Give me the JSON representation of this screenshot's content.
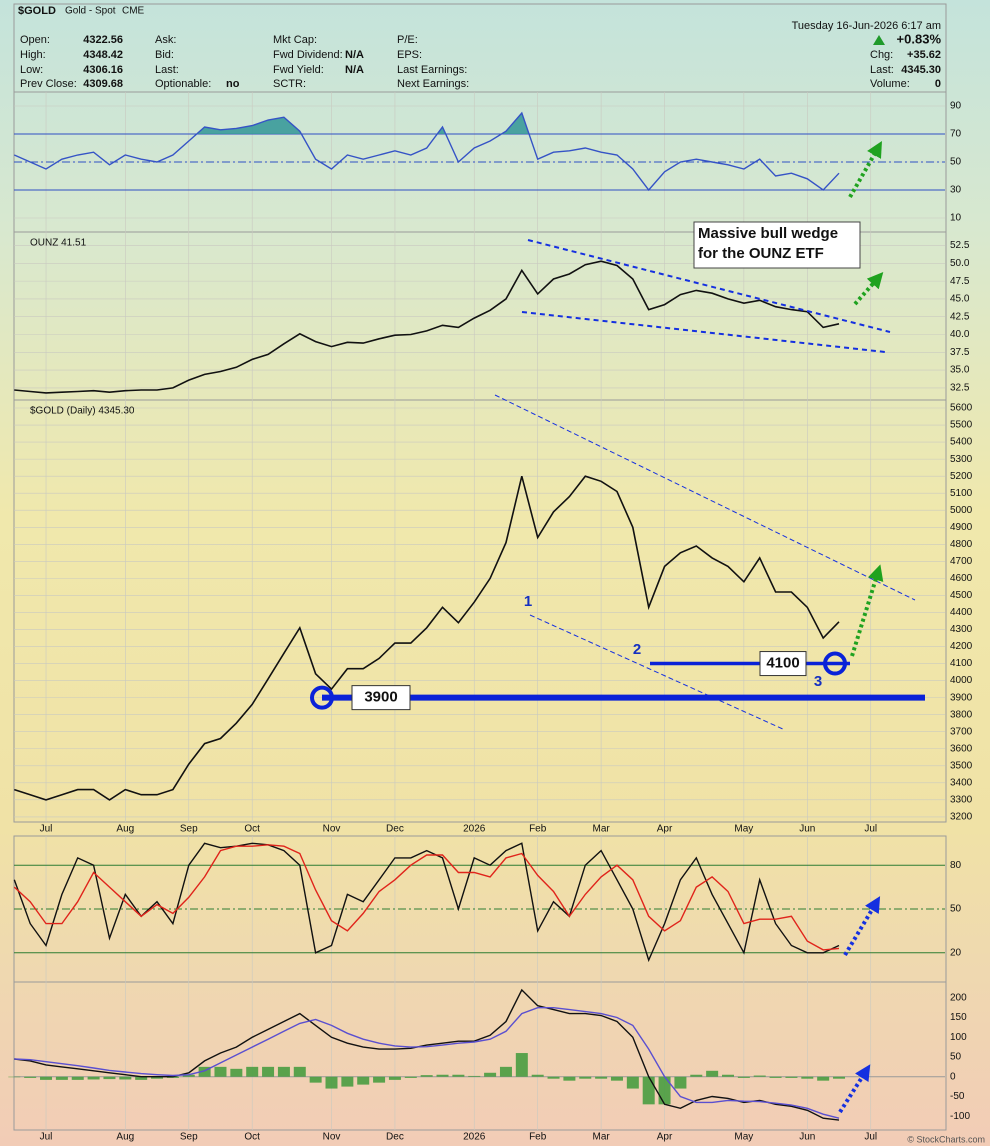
{
  "header": {
    "symbol": "$GOLD",
    "name": "Gold - Spot",
    "exchange": "CME",
    "date": "Tuesday  16-Jun-2026  6:17 am",
    "change_pct": "+0.83%",
    "columns": [
      [
        [
          "Open:",
          "4322.56"
        ],
        [
          "High:",
          "4348.42"
        ],
        [
          "Low:",
          "4306.16"
        ],
        [
          "Prev Close:",
          "4309.68"
        ]
      ],
      [
        [
          "Ask:"
        ],
        [
          "Bid:"
        ],
        [
          "Last:"
        ],
        [
          "Optionable:",
          "no"
        ]
      ],
      [
        [
          "Mkt Cap:"
        ],
        [
          "Fwd Dividend:",
          "N/A"
        ],
        [
          "Fwd Yield:",
          "N/A"
        ],
        [
          "SCTR:"
        ]
      ],
      [
        [
          "P/E:"
        ],
        [
          "EPS:"
        ],
        [
          "Last Earnings:"
        ],
        [
          "Next Earnings:"
        ]
      ]
    ],
    "right": [
      [
        "Chg:",
        "+35.62"
      ],
      [
        "Last:",
        "4345.30"
      ],
      [
        "Volume:",
        "0"
      ]
    ],
    "credit": "© StockCharts.com"
  },
  "chart_data": [
    {
      "type": "line",
      "ylim": [
        0,
        100
      ],
      "yticks": [
        10,
        30,
        50,
        70,
        90
      ],
      "levels": [
        30,
        50,
        70
      ],
      "level_color": "#2f4fc4",
      "fill_above": 70,
      "fill_color": "#3a9a9a",
      "grid": true,
      "series": [
        {
          "color": "#3553c6",
          "values": [
            55,
            50,
            45,
            52,
            55,
            57,
            48,
            55,
            52,
            50,
            55,
            65,
            75,
            73,
            74,
            76,
            80,
            82,
            72,
            52,
            45,
            55,
            52,
            55,
            58,
            55,
            60,
            75,
            50,
            60,
            65,
            72,
            85,
            52,
            57,
            58,
            60,
            57,
            55,
            45,
            30,
            43,
            50,
            52,
            50,
            48,
            45,
            52,
            40,
            42,
            38,
            30,
            42,
            null,
            null
          ]
        }
      ]
    },
    {
      "type": "line",
      "label": "OUNZ 41.51",
      "note": [
        "Massive bull wedge",
        "for the OUNZ ETF"
      ],
      "ylim": [
        30.8,
        54.4
      ],
      "grid": true,
      "yticks": [
        32.5,
        {
          "value": 35,
          "label": "35.0"
        },
        37.5,
        {
          "value": 40,
          "label": "40.0"
        },
        42.5,
        {
          "value": 45,
          "label": "45.0"
        },
        47.5,
        {
          "value": 50,
          "label": "50.0"
        },
        52.5
      ],
      "series": [
        {
          "color": "#111111",
          "values": [
            32.2,
            32.0,
            31.8,
            31.9,
            32.0,
            32.1,
            31.9,
            32.1,
            32.2,
            32.2,
            32.5,
            33.6,
            34.4,
            34.8,
            35.4,
            36.5,
            37.2,
            38.7,
            40.1,
            39.0,
            38.3,
            38.9,
            38.8,
            39.4,
            39.9,
            40.0,
            40.5,
            41.3,
            41.0,
            42.3,
            43.4,
            45.0,
            49.0,
            45.7,
            47.8,
            48.5,
            49.8,
            50.3,
            49.7,
            47.8,
            43.5,
            44.2,
            45.6,
            46.2,
            45.8,
            45.0,
            44.4,
            44.8,
            43.9,
            43.5,
            43.2,
            41.0,
            41.51,
            null,
            null
          ]
        }
      ]
    },
    {
      "type": "line",
      "label": "$GOLD (Daily) 4345.30",
      "waves": [
        "1",
        "2",
        "3"
      ],
      "levels": [
        4100,
        3900
      ],
      "level_color": "#0a22d8",
      "ylim": [
        3170,
        5647
      ],
      "grid": true,
      "categories": [
        null,
        null,
        "Jul",
        null,
        null,
        null,
        null,
        "Aug",
        null,
        null,
        null,
        "Sep",
        null,
        null,
        null,
        "Oct",
        null,
        null,
        null,
        null,
        "Nov",
        null,
        null,
        null,
        "Dec",
        null,
        null,
        null,
        null,
        "2026",
        null,
        null,
        null,
        "Feb",
        null,
        null,
        null,
        "Mar",
        null,
        null,
        null,
        "Apr",
        null,
        null,
        null,
        null,
        "May",
        null,
        null,
        null,
        "Jun",
        null,
        null,
        null,
        "Jul"
      ],
      "yticks": [
        3200,
        3300,
        3400,
        3500,
        3600,
        3700,
        3800,
        3900,
        4000,
        4100,
        4200,
        4300,
        4400,
        4500,
        4600,
        4700,
        4800,
        4900,
        5000,
        5100,
        5200,
        5300,
        5400,
        5500,
        5600
      ],
      "series": [
        {
          "color": "#111111",
          "values": [
            3360,
            3330,
            3300,
            3330,
            3360,
            3360,
            3300,
            3360,
            3330,
            3330,
            3360,
            3510,
            3630,
            3660,
            3750,
            3860,
            4010,
            4160,
            4310,
            4040,
            3950,
            4070,
            4070,
            4130,
            4220,
            4220,
            4310,
            4430,
            4340,
            4460,
            4600,
            4810,
            5200,
            4840,
            4990,
            5080,
            5200,
            5170,
            5110,
            4900,
            4430,
            4670,
            4750,
            4790,
            4720,
            4670,
            4580,
            4720,
            4520,
            4520,
            4430,
            4250,
            4345.3,
            null,
            null
          ]
        }
      ]
    },
    {
      "type": "line",
      "ylim": [
        0,
        100
      ],
      "yticks": [
        20,
        50,
        80
      ],
      "levels": [
        20,
        50,
        80
      ],
      "level_color": "#2e7d32",
      "grid": false,
      "series": [
        {
          "color": "#111111",
          "values": [
            70,
            40,
            25,
            60,
            85,
            80,
            30,
            60,
            45,
            55,
            40,
            80,
            95,
            92,
            93,
            95,
            94,
            90,
            80,
            20,
            25,
            60,
            55,
            70,
            85,
            85,
            90,
            85,
            50,
            85,
            80,
            90,
            95,
            35,
            55,
            45,
            80,
            90,
            70,
            50,
            15,
            40,
            70,
            85,
            60,
            40,
            20,
            70,
            40,
            25,
            20,
            20,
            25,
            null,
            null
          ]
        },
        {
          "color": "#e0241b",
          "values": [
            65,
            55,
            40,
            40,
            55,
            75,
            65,
            55,
            45,
            53,
            47,
            58,
            72,
            90,
            93,
            93,
            94,
            93,
            88,
            63,
            42,
            35,
            47,
            62,
            70,
            80,
            87,
            87,
            75,
            75,
            72,
            85,
            88,
            73,
            62,
            45,
            60,
            72,
            80,
            70,
            45,
            35,
            42,
            65,
            72,
            62,
            40,
            43,
            43,
            45,
            28,
            22,
            23,
            null,
            null
          ]
        }
      ]
    },
    {
      "type": "line",
      "ylim": [
        -135,
        240
      ],
      "yticks": [
        -100,
        -50,
        0,
        50,
        100,
        150,
        200
      ],
      "levels": [
        0
      ],
      "level_color": "#999999",
      "grid": false,
      "categories": [
        null,
        null,
        "Jul",
        null,
        null,
        null,
        null,
        "Aug",
        null,
        null,
        null,
        "Sep",
        null,
        null,
        null,
        "Oct",
        null,
        null,
        null,
        null,
        "Nov",
        null,
        null,
        null,
        "Dec",
        null,
        null,
        null,
        null,
        "2026",
        null,
        null,
        null,
        "Feb",
        null,
        null,
        null,
        "Mar",
        null,
        null,
        null,
        "Apr",
        null,
        null,
        null,
        null,
        "May",
        null,
        null,
        null,
        "Jun",
        null,
        null,
        null,
        "Jul"
      ],
      "series": [
        {
          "type": "bar",
          "color": "#3f9a3a",
          "values": [
            0,
            -3,
            -8,
            -8,
            -8,
            -7,
            -6,
            -7,
            -8,
            -5,
            -3,
            5,
            25,
            25,
            20,
            25,
            25,
            25,
            25,
            -15,
            -30,
            -25,
            -20,
            -15,
            -8,
            -3,
            4,
            5,
            5,
            2,
            10,
            25,
            60,
            5,
            -5,
            -10,
            -5,
            -5,
            -10,
            -30,
            -70,
            -70,
            -30,
            5,
            15,
            5,
            -3,
            3,
            -3,
            -3,
            -5,
            -10,
            -5,
            null,
            null
          ]
        },
        {
          "color": "#111111",
          "values": [
            45,
            40,
            30,
            25,
            20,
            15,
            10,
            5,
            0,
            0,
            0,
            10,
            40,
            60,
            75,
            100,
            120,
            140,
            160,
            130,
            100,
            85,
            75,
            70,
            70,
            72,
            80,
            85,
            90,
            90,
            105,
            140,
            220,
            180,
            170,
            160,
            160,
            155,
            140,
            100,
            0,
            -70,
            -80,
            -60,
            -50,
            -55,
            -65,
            -60,
            -70,
            -75,
            -85,
            -105,
            -110,
            null,
            null
          ]
        },
        {
          "color": "#5a4fd0",
          "values": [
            45,
            43,
            38,
            33,
            28,
            22,
            16,
            12,
            8,
            5,
            3,
            5,
            15,
            35,
            55,
            75,
            95,
            115,
            135,
            145,
            130,
            110,
            95,
            85,
            78,
            75,
            76,
            80,
            85,
            88,
            95,
            115,
            160,
            175,
            175,
            170,
            165,
            160,
            150,
            130,
            70,
            0,
            -50,
            -65,
            -65,
            -60,
            -62,
            -63,
            -67,
            -72,
            -80,
            -95,
            -105,
            null,
            null
          ]
        }
      ]
    }
  ]
}
